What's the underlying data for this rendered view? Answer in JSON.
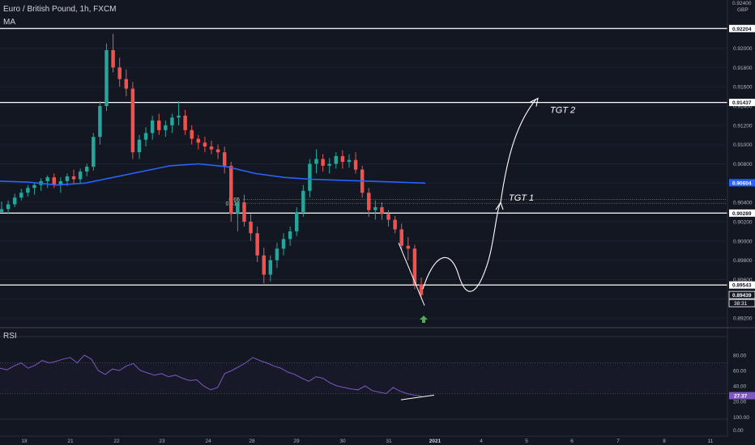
{
  "header": {
    "symbol": "Euro / British Pound, 1h, FXCM",
    "indicator": "MA"
  },
  "rsi_panel": {
    "label": "RSI"
  },
  "chart_data": [
    {
      "type": "candlestick",
      "title": "Euro / British Pound, 1h, FXCM",
      "currency": "GBP",
      "ylim": [
        0.891,
        0.925
      ],
      "x_ticks": [
        "18",
        "21",
        "22",
        "23",
        "24",
        "28",
        "29",
        "30",
        "31",
        "2021",
        "4",
        "5",
        "6",
        "7",
        "8",
        "11"
      ],
      "y_ticks": [
        "0.92000",
        "0.91800",
        "0.91600",
        "0.91400",
        "0.91200",
        "0.91000",
        "0.90800",
        "0.90600",
        "0.90400",
        "0.90200",
        "0.90000",
        "0.89800",
        "0.89600",
        "0.89400",
        "0.89200"
      ],
      "top_partial_tick": "0.92400",
      "price_labels": [
        "0.92204",
        "0.91437",
        "0.90604",
        "0.90289",
        "0.89543",
        "0.89439"
      ],
      "countdown": "38:31",
      "horizontal_levels": [
        0.92204,
        0.91437,
        0.90289,
        0.89543
      ],
      "moving_average_last": 0.90604,
      "last_price": 0.89439,
      "fib_levels": [
        {
          "label": "0.65",
          "value": 0.9043
        },
        {
          "label": "0.618",
          "value": 0.9039
        }
      ],
      "annotations": [
        "TGT 1",
        "TGT 2"
      ],
      "targets": [
        {
          "label": "TGT 1",
          "price": 0.904
        },
        {
          "label": "TGT 2",
          "price": 0.9143
        }
      ],
      "price_path": [
        [
          0.903,
          0.9041,
          0.903,
          0.9033
        ],
        [
          0.9033,
          0.9042,
          0.9028,
          0.9038
        ],
        [
          0.9038,
          0.9049,
          0.9035,
          0.9045
        ],
        [
          0.9045,
          0.9054,
          0.9042,
          0.905
        ],
        [
          0.905,
          0.9058,
          0.9046,
          0.9055
        ],
        [
          0.9055,
          0.9061,
          0.9048,
          0.9058
        ],
        [
          0.9058,
          0.9065,
          0.9052,
          0.9062
        ],
        [
          0.9062,
          0.9068,
          0.9055,
          0.9066
        ],
        [
          0.9066,
          0.907,
          0.9055,
          0.9058
        ],
        [
          0.9058,
          0.9066,
          0.905,
          0.9062
        ],
        [
          0.9062,
          0.907,
          0.9057,
          0.9067
        ],
        [
          0.9067,
          0.9074,
          0.906,
          0.9064
        ],
        [
          0.9064,
          0.9075,
          0.906,
          0.9072
        ],
        [
          0.9072,
          0.908,
          0.9067,
          0.9077
        ],
        [
          0.9077,
          0.9112,
          0.9073,
          0.9108
        ],
        [
          0.9108,
          0.9145,
          0.91,
          0.914
        ],
        [
          0.914,
          0.9205,
          0.9135,
          0.9198
        ],
        [
          0.9198,
          0.9215,
          0.9175,
          0.918
        ],
        [
          0.918,
          0.919,
          0.916,
          0.9168
        ],
        [
          0.9168,
          0.9178,
          0.915,
          0.9158
        ],
        [
          0.9158,
          0.9165,
          0.9085,
          0.9092
        ],
        [
          0.9092,
          0.911,
          0.9085,
          0.9105
        ],
        [
          0.9105,
          0.9118,
          0.9098,
          0.9112
        ],
        [
          0.9112,
          0.913,
          0.9105,
          0.9125
        ],
        [
          0.9125,
          0.9132,
          0.911,
          0.9115
        ],
        [
          0.9115,
          0.9125,
          0.9108,
          0.912
        ],
        [
          0.912,
          0.9132,
          0.9112,
          0.9128
        ],
        [
          0.9128,
          0.9145,
          0.912,
          0.913
        ],
        [
          0.913,
          0.9136,
          0.911,
          0.9115
        ],
        [
          0.9115,
          0.912,
          0.91,
          0.9106
        ],
        [
          0.9106,
          0.911,
          0.9095,
          0.9102
        ],
        [
          0.9102,
          0.9108,
          0.9092,
          0.9098
        ],
        [
          0.9098,
          0.9104,
          0.909,
          0.9095
        ],
        [
          0.9095,
          0.91,
          0.9085,
          0.9092
        ],
        [
          0.9092,
          0.9098,
          0.907,
          0.9078
        ],
        [
          0.9078,
          0.9082,
          0.902,
          0.9028
        ],
        [
          0.9028,
          0.9045,
          0.901,
          0.904
        ],
        [
          0.904,
          0.9048,
          0.9015,
          0.902
        ],
        [
          0.902,
          0.9028,
          0.9,
          0.9008
        ],
        [
          0.9008,
          0.9015,
          0.8978,
          0.8985
        ],
        [
          0.8985,
          0.8993,
          0.8956,
          0.8965
        ],
        [
          0.8965,
          0.8985,
          0.8958,
          0.898
        ],
        [
          0.898,
          0.8998,
          0.8972,
          0.8992
        ],
        [
          0.8992,
          0.9008,
          0.8985,
          0.9002
        ],
        [
          0.9002,
          0.9015,
          0.8995,
          0.901
        ],
        [
          0.901,
          0.9035,
          0.9005,
          0.903
        ],
        [
          0.903,
          0.9058,
          0.9025,
          0.9052
        ],
        [
          0.9052,
          0.9085,
          0.9045,
          0.908
        ],
        [
          0.908,
          0.9095,
          0.907,
          0.9085
        ],
        [
          0.9085,
          0.909,
          0.9072,
          0.9078
        ],
        [
          0.9078,
          0.9086,
          0.907,
          0.908
        ],
        [
          0.908,
          0.9092,
          0.9075,
          0.9088
        ],
        [
          0.9088,
          0.9094,
          0.9075,
          0.9082
        ],
        [
          0.9082,
          0.909,
          0.9076,
          0.9084
        ],
        [
          0.9084,
          0.9092,
          0.907,
          0.9074
        ],
        [
          0.9074,
          0.9078,
          0.9045,
          0.905
        ],
        [
          0.905,
          0.9055,
          0.9025,
          0.9032
        ],
        [
          0.9032,
          0.9042,
          0.9022,
          0.9035
        ],
        [
          0.9035,
          0.904,
          0.9022,
          0.9028
        ],
        [
          0.9028,
          0.9032,
          0.9015,
          0.9022
        ],
        [
          0.9022,
          0.9026,
          0.9008,
          0.9012
        ],
        [
          0.9012,
          0.9018,
          0.899,
          0.8995
        ],
        [
          0.8995,
          0.9004,
          0.898,
          0.8992
        ],
        [
          0.8992,
          0.8996,
          0.895,
          0.8955
        ],
        [
          0.8955,
          0.8962,
          0.894,
          0.8944
        ]
      ],
      "moving_average": [
        0.9062,
        0.9061,
        0.9058,
        0.906,
        0.9066,
        0.9072,
        0.9078,
        0.908,
        0.9077,
        0.907,
        0.9066,
        0.9064,
        0.9063,
        0.9062,
        0.9061,
        0.906
      ]
    },
    {
      "type": "line",
      "title": "RSI",
      "ylim": [
        0,
        100
      ],
      "y_ticks": [
        "80.00",
        "60.00",
        "40.00",
        "20.00"
      ],
      "extra_ticks": [
        "100.00",
        "0.00"
      ],
      "last_value": 27.37,
      "last_label": "27.37",
      "values": [
        63,
        61,
        66,
        70,
        63,
        67,
        73,
        70,
        72,
        75,
        77,
        70,
        80,
        75,
        60,
        55,
        62,
        60,
        66,
        69,
        60,
        57,
        54,
        56,
        52,
        54,
        50,
        47,
        48,
        40,
        35,
        38,
        56,
        60,
        65,
        70,
        77,
        73,
        70,
        66,
        63,
        58,
        55,
        50,
        46,
        52,
        50,
        44,
        40,
        38,
        36,
        35,
        40,
        34,
        32,
        30,
        38,
        33,
        30,
        28,
        27
      ]
    }
  ],
  "colors": {
    "background": "#131722",
    "bull": "#26a69a",
    "bear": "#ef5350",
    "moving_average": "#2962ff",
    "rsi_line": "#7e57c2",
    "level_line": "#ffffff",
    "arrow": "#4caf50"
  }
}
